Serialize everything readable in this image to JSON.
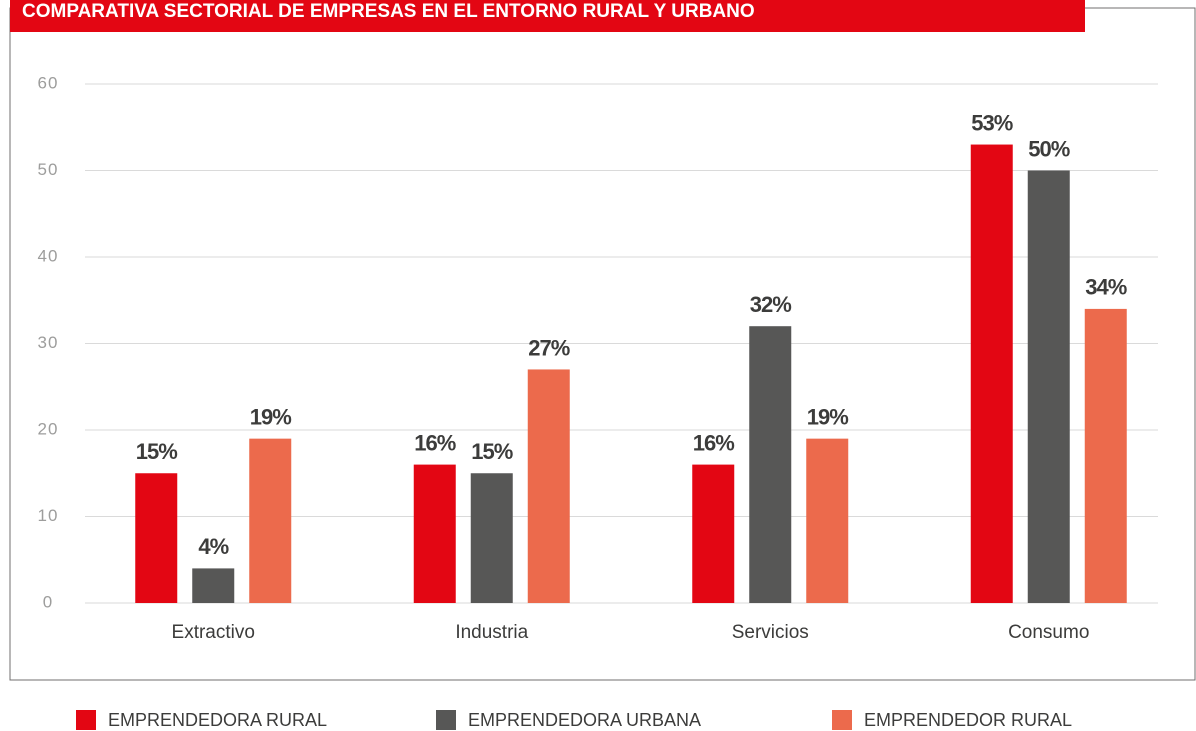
{
  "chart_data": {
    "type": "bar",
    "title": "COMPARATIVA SECTORIAL DE EMPRESAS EN EL ENTORNO RURAL Y URBANO",
    "categories": [
      "Extractivo",
      "Industria",
      "Servicios",
      "Consumo"
    ],
    "series": [
      {
        "name": "EMPRENDEDORA RURAL",
        "color": "#e30613",
        "values": [
          15,
          16,
          16,
          53
        ],
        "value_labels": [
          "15%",
          "16%",
          "16%",
          "53%"
        ]
      },
      {
        "name": "EMPRENDEDORA URBANA",
        "color": "#575756",
        "values": [
          4,
          15,
          32,
          50
        ],
        "value_labels": [
          "4%",
          "15%",
          "32%",
          "50%"
        ]
      },
      {
        "name": "EMPRENDEDOR RURAL",
        "color": "#ec6a4c",
        "values": [
          19,
          27,
          19,
          34
        ],
        "value_labels": [
          "19%",
          "27%",
          "19%",
          "34%"
        ]
      }
    ],
    "ylim": [
      0,
      60
    ],
    "yticks": [
      0,
      10,
      20,
      30,
      40,
      50,
      60
    ],
    "grid": true,
    "legend": "bottom"
  }
}
